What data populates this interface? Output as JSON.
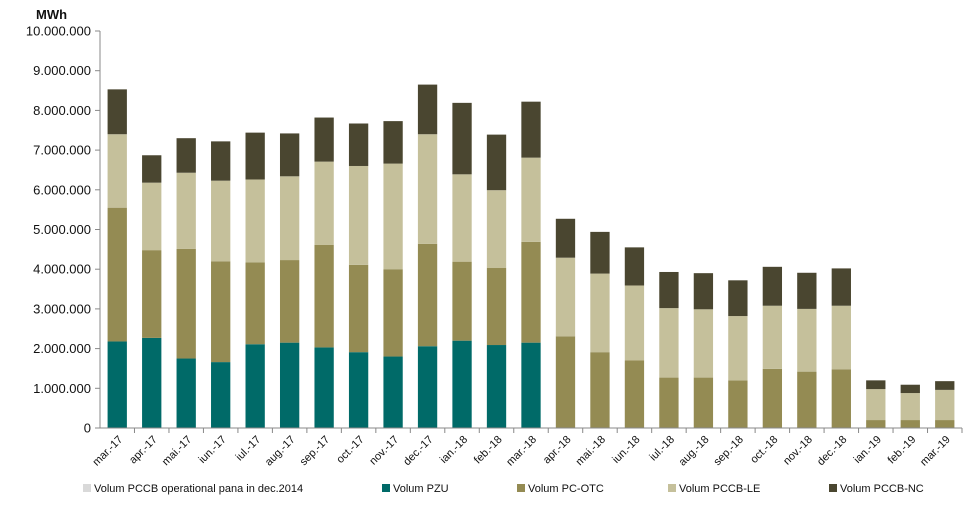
{
  "chart_data": {
    "type": "bar",
    "stacked": true,
    "unit_label": "MWh",
    "ylim": [
      0,
      10000000
    ],
    "y_ticks": [
      "0",
      "1.000.000",
      "2.000.000",
      "3.000.000",
      "4.000.000",
      "5.000.000",
      "6.000.000",
      "7.000.000",
      "8.000.000",
      "9.000.000",
      "10.000.000"
    ],
    "categories": [
      "mar.-17",
      "apr.-17",
      "mai.-17",
      "iun.-17",
      "iul.-17",
      "aug.-17",
      "sep.-17",
      "oct.-17",
      "nov.-17",
      "dec.-17",
      "ian.-18",
      "feb.-18",
      "mar.-18",
      "apr.-18",
      "mai.-18",
      "iun.-18",
      "iul.-18",
      "aug.-18",
      "sep.-18",
      "oct.-18",
      "nov.-18",
      "dec.-18",
      "ian.-19",
      "feb.-19",
      "mar.-19"
    ],
    "series": [
      {
        "name": "Volum PCCB operational pana in dec.2014",
        "color": "#d9d9d9",
        "values": [
          0,
          0,
          0,
          0,
          0,
          0,
          0,
          0,
          0,
          0,
          0,
          0,
          0,
          0,
          0,
          0,
          0,
          0,
          0,
          0,
          0,
          0,
          0,
          0,
          0
        ]
      },
      {
        "name": "Volum PZU",
        "color": "#006a68",
        "values": [
          2180000,
          2270000,
          1750000,
          1660000,
          2110000,
          2150000,
          2030000,
          1910000,
          1800000,
          2060000,
          2200000,
          2090000,
          2150000,
          0,
          0,
          0,
          0,
          0,
          0,
          0,
          0,
          0,
          0,
          0,
          0
        ]
      },
      {
        "name": "Volum PC-OTC",
        "color": "#948b53",
        "values": [
          3370000,
          2210000,
          2760000,
          2540000,
          2060000,
          2080000,
          2580000,
          2200000,
          2200000,
          2580000,
          1990000,
          1940000,
          2540000,
          2310000,
          1910000,
          1700000,
          1270000,
          1270000,
          1200000,
          1490000,
          1420000,
          1480000,
          200000,
          200000,
          200000
        ]
      },
      {
        "name": "Volum PCCB-LE",
        "color": "#c5c09b",
        "values": [
          1850000,
          1700000,
          1920000,
          2030000,
          2090000,
          2110000,
          2100000,
          2490000,
          2660000,
          2760000,
          2200000,
          1960000,
          2120000,
          1980000,
          1980000,
          1890000,
          1750000,
          1720000,
          1620000,
          1590000,
          1580000,
          1600000,
          780000,
          680000,
          760000
        ]
      },
      {
        "name": "Volum PCCB-NC",
        "color": "#4a4630",
        "values": [
          1130000,
          690000,
          870000,
          990000,
          1180000,
          1080000,
          1110000,
          1070000,
          1070000,
          1250000,
          1800000,
          1400000,
          1410000,
          980000,
          1050000,
          960000,
          910000,
          910000,
          900000,
          980000,
          910000,
          940000,
          220000,
          210000,
          220000
        ]
      }
    ],
    "legend_position": "bottom",
    "grid": false
  }
}
